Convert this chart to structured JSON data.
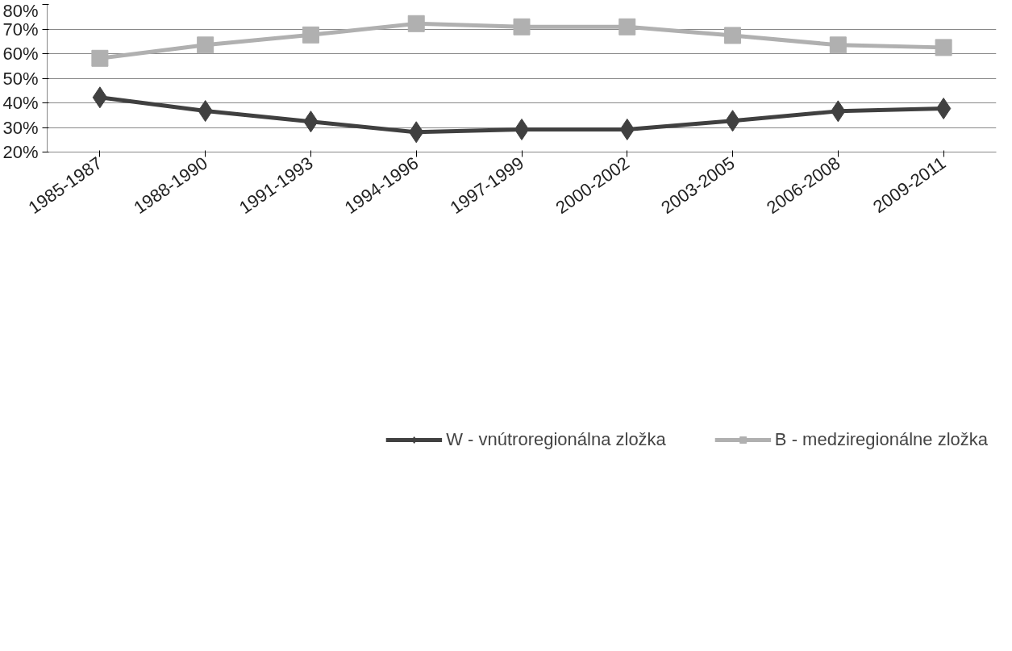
{
  "chart_data": {
    "type": "line",
    "categories": [
      "1985-1987",
      "1988-1990",
      "1991-1993",
      "1994-1996",
      "1997-1999",
      "2000-2002",
      "2003-2005",
      "2006-2008",
      "2009-2011"
    ],
    "series": [
      {
        "name": "W - vnútroregionálna zložka",
        "color": "#404040",
        "marker": "diamond",
        "values": [
          42.2,
          36.7,
          32.4,
          28.1,
          29.2,
          29.2,
          32.7,
          36.6,
          37.7
        ]
      },
      {
        "name": "B - medziregionálne zložka",
        "color": "#b0b0b0",
        "marker": "square",
        "values": [
          58.1,
          63.5,
          67.6,
          72.2,
          70.9,
          70.9,
          67.4,
          63.5,
          62.5
        ]
      }
    ],
    "ylim": [
      20,
      80
    ],
    "yticks": [
      {
        "value": 20,
        "label": "20%"
      },
      {
        "value": 30,
        "label": "30%"
      },
      {
        "value": 40,
        "label": "40%"
      },
      {
        "value": 50,
        "label": "50%"
      },
      {
        "value": 60,
        "label": "60%"
      },
      {
        "value": 70,
        "label": "70%"
      },
      {
        "value": 80,
        "label": "80%"
      }
    ],
    "grid": "y",
    "legend": "bottom",
    "line_style": "solid"
  }
}
